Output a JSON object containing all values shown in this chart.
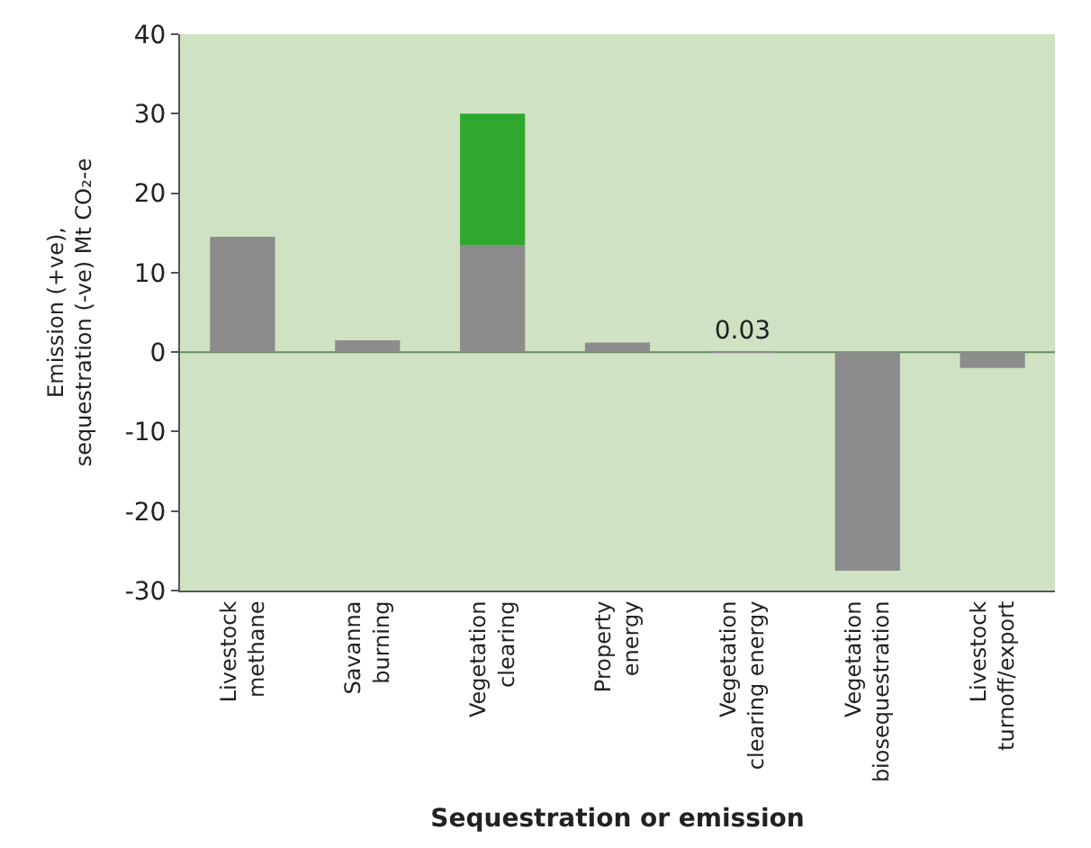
{
  "chart_data": {
    "type": "bar",
    "stacked": true,
    "xlabel": "Sequestration or emission",
    "ylabel": "Emission (+ve),\nsequestration (-ve) Mt CO₂-e",
    "categories": [
      "Livestock\nmethane",
      "Savanna\nburning",
      "Vegetation\nclearing",
      "Property\nenergy",
      "Vegetation\nclearing energy",
      "Vegetation\nbiosequestration",
      "Livestock\nturnoff/export"
    ],
    "series": [
      {
        "color": "#8c8c8c",
        "values": [
          14.5,
          1.5,
          13.5,
          1.2,
          0.03,
          -27.5,
          -2
        ],
        "value_labels": [
          null,
          null,
          null,
          null,
          "0.03",
          null,
          null
        ]
      },
      {
        "color": "#2ea82e",
        "values": [
          null,
          null,
          16.5,
          null,
          null,
          null,
          null
        ]
      }
    ],
    "ylim": [
      -30,
      40
    ],
    "yticks": [
      -30,
      -20,
      -10,
      0,
      10,
      20,
      30,
      40
    ],
    "grid": false,
    "ref_lines": [
      {
        "axis": "y",
        "value": 0,
        "color": "#6a8a60"
      }
    ]
  }
}
